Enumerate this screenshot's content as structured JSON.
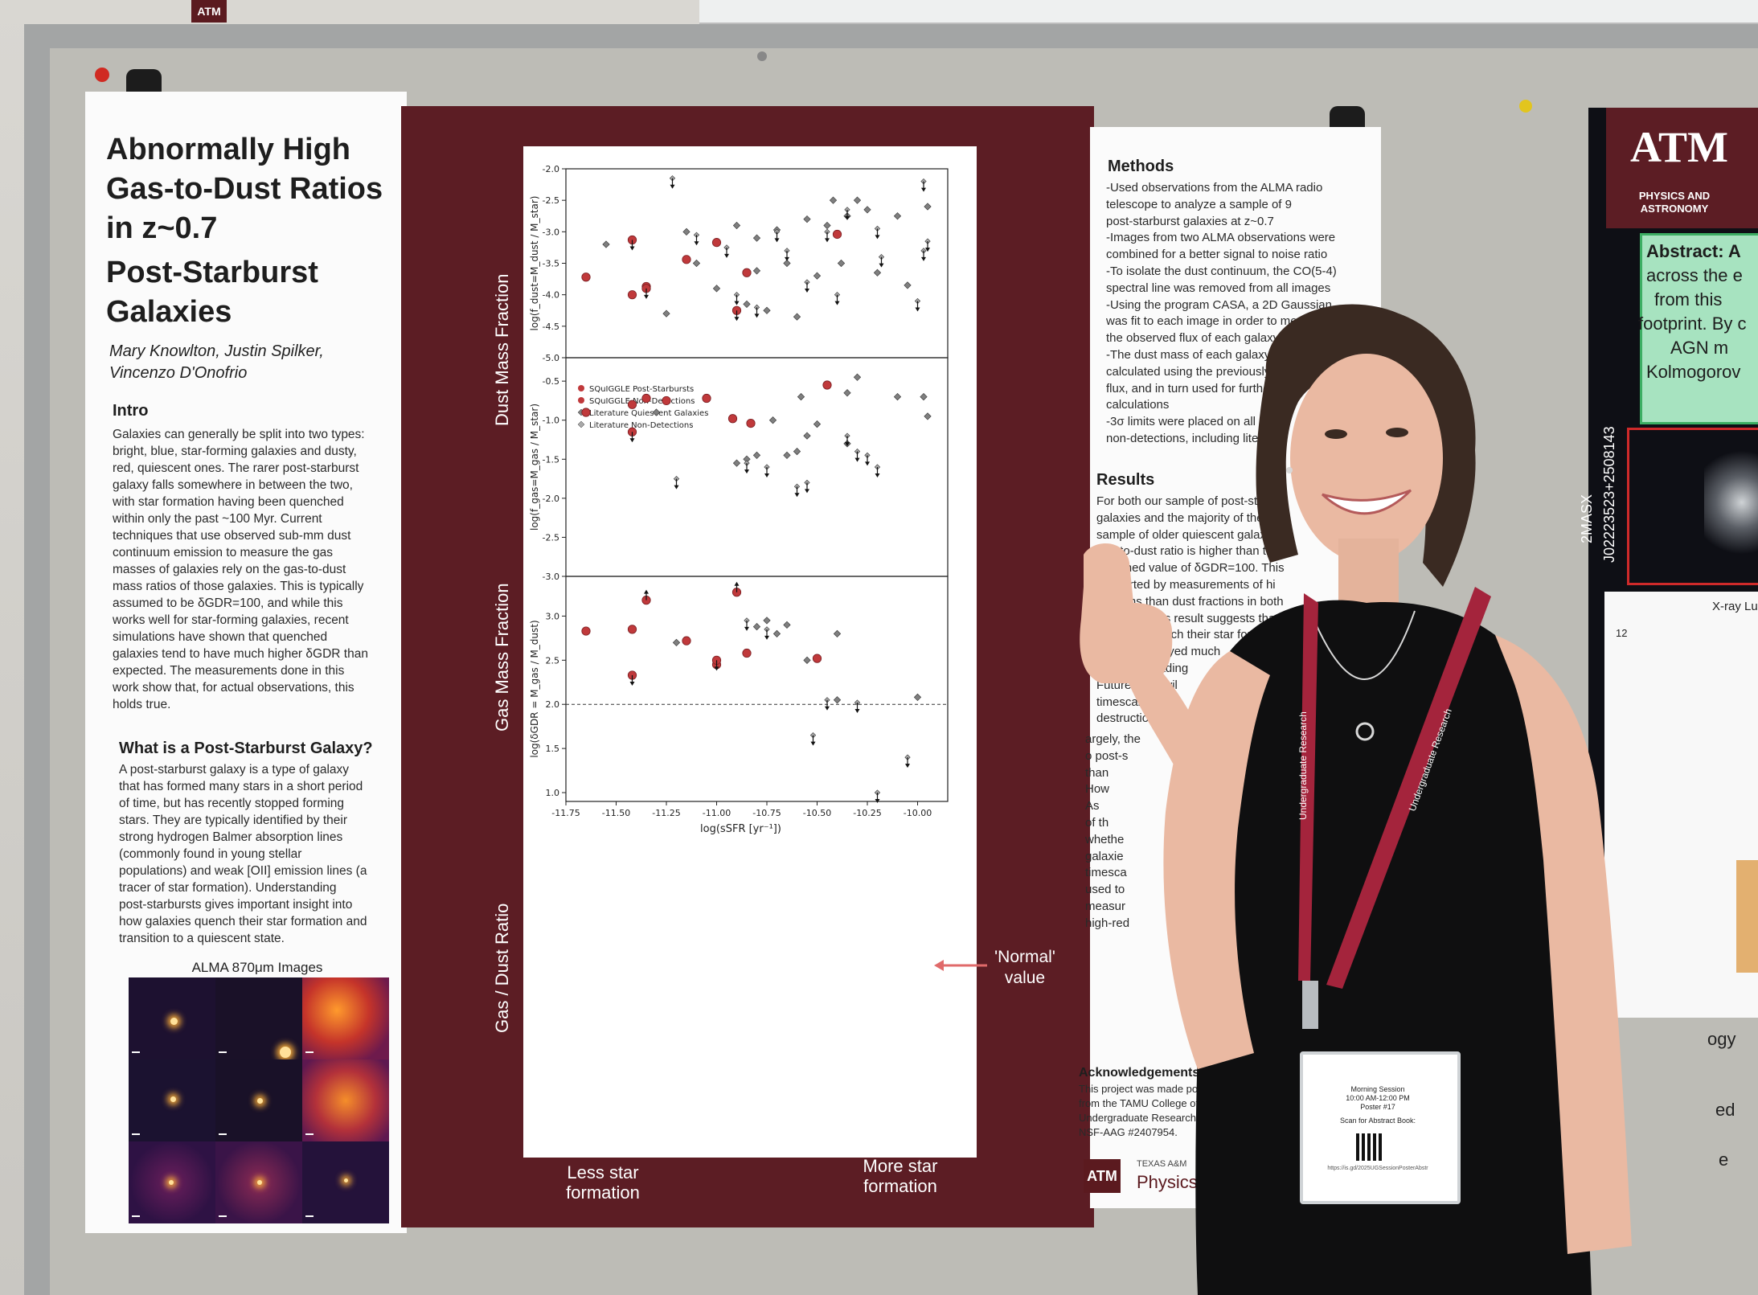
{
  "poster": {
    "title_lines": [
      "Abnormally High",
      "Gas-to-Dust Ratios",
      "in z~0.7",
      "Post-Starburst",
      "Galaxies"
    ],
    "authors_lines": [
      "Mary Knowlton, Justin Spilker,",
      "Vincenzo D'Onofrio"
    ],
    "intro": {
      "heading": "Intro",
      "lines": [
        "Galaxies can generally be split into two types:",
        "bright, blue, star-forming galaxies and dusty,",
        "red, quiescent ones. The rarer post-starburst",
        "galaxy falls somewhere in between the two,",
        "with star formation having been quenched",
        "within only the past ~100 Myr. Current",
        "techniques that use observed sub-mm dust",
        "continuum emission to measure the gas",
        "masses of galaxies rely on the gas-to-dust",
        "mass ratios of those galaxies. This is typically",
        "assumed to be δGDR=100, and while this",
        "works well for star-forming galaxies, recent",
        "simulations have shown that quenched",
        "galaxies tend to have much higher δGDR than",
        "expected. The measurements done in this",
        "work show that, for actual observations, this",
        "holds true."
      ]
    },
    "what_is": {
      "heading": "What is a Post-Starburst Galaxy?",
      "lines": [
        "A post-starburst galaxy is a type of galaxy",
        "that has formed many stars in a short period",
        "of time, but has recently stopped forming",
        "stars. They are typically identified by their",
        "strong hydrogen Balmer absorption lines",
        "(commonly found in young stellar",
        "populations) and weak [OII] emission lines (a",
        "tracer of star formation). Understanding",
        "post-starbursts gives important insight into",
        "how galaxies quench their star formation and",
        "transition to a quiescent state."
      ]
    },
    "alma_caption": "ALMA 870μm Images",
    "methods": {
      "heading": "Methods",
      "lines": [
        "-Used observations from the ALMA radio",
        "telescope to analyze a sample of 9",
        "post-starburst galaxies at z~0.7",
        "-Images from two ALMA observations were",
        "combined for a better signal to noise ratio",
        "-To isolate the dust continuum, the CO(5-4)",
        "spectral line was removed from all images",
        "-Using the program CASA, a 2D Gaussian",
        "was fit to each image in order to measu",
        "the observed flux of each galaxy",
        "-The dust mass of each galaxy was",
        "calculated using the previously mea",
        "flux, and in turn used for further",
        "calculations",
        "-3σ limits were placed on all",
        "non-detections, including literatu"
      ]
    },
    "results": {
      "heading": "Results",
      "lines": [
        "For both our sample of post-starb",
        "galaxies and the majority of the lit",
        "sample of older quiescent galaxies,",
        "gas-to-dust ratio is higher than the",
        "assumed value of δGDR=100. This",
        "supported by measurements of hi",
        "fractions than dust fractions in both",
        "samples. This result suggests that as",
        "galaxies quench their star for",
        "dust is destroyed much",
        "their gas, leading",
        "Future work wil",
        "timescale that",
        "destruction o"
      ],
      "partial_lines": [
        "argely, the",
        "o  post-s",
        "than",
        "How",
        "",
        "",
        "As",
        "of th",
        "whethe",
        "galaxie",
        "timesca",
        "used to",
        "measur",
        "high-red"
      ]
    },
    "acknowledgements": {
      "heading": "Acknowledgements",
      "lines": [
        "This project was made possib",
        "from the TAMU College of A",
        "Undergraduate Research P",
        "NSF-AAG #2407954."
      ]
    },
    "footer": {
      "logo": "ATM",
      "small_text": "TEXAS A&M",
      "dept": "Physics"
    },
    "panel_labels": {
      "dust_mass_fraction": "Dust Mass Fraction",
      "gas_mass_fraction": "Gas Mass Fraction",
      "gas_dust_ratio": "Gas / Dust Ratio",
      "less_star_formation": [
        "Less star",
        "formation"
      ],
      "more_star_formation": [
        "More star",
        "formation"
      ],
      "normal_value": [
        "'Normal'",
        "value"
      ]
    }
  },
  "chart_data": [
    {
      "type": "scatter",
      "title": "",
      "ylabel": "log(f_dust=M_dust / M_star)",
      "xlabel": "",
      "xlim": [
        -11.75,
        -9.85
      ],
      "ylim": [
        -5.0,
        -2.0
      ],
      "yticks": [
        "-2.0",
        "-2.5",
        "-3.0",
        "-3.5",
        "-4.0",
        "-4.5",
        "-5.0"
      ],
      "legend": [
        "SQuIGGLE Post-Starbursts",
        "SQuIGGLE Non-Detections",
        "Literature Quiescent Galaxies",
        "Literature Non-Detections"
      ],
      "series": [
        {
          "name": "SQuIGGLE Post-Starbursts",
          "points": [
            [
              -11.65,
              -3.72
            ],
            [
              -11.42,
              -4.0
            ],
            [
              -11.35,
              -3.87
            ],
            [
              -11.15,
              -3.44
            ],
            [
              -11.0,
              -3.17
            ],
            [
              -10.85,
              -3.65
            ],
            [
              -10.4,
              -3.04
            ]
          ]
        },
        {
          "name": "SQuIGGLE Non-Detections",
          "points": [
            [
              -11.42,
              -3.13
            ],
            [
              -11.35,
              -3.9
            ],
            [
              -10.9,
              -4.25
            ]
          ]
        },
        {
          "name": "Literature Quiescent Galaxies",
          "points": [
            [
              -11.55,
              -3.2
            ],
            [
              -11.25,
              -4.3
            ],
            [
              -11.15,
              -3.0
            ],
            [
              -11.1,
              -3.5
            ],
            [
              -11.0,
              -3.9
            ],
            [
              -10.9,
              -2.9
            ],
            [
              -10.85,
              -4.15
            ],
            [
              -10.8,
              -3.1
            ],
            [
              -10.8,
              -3.62
            ],
            [
              -10.75,
              -4.25
            ],
            [
              -10.7,
              -2.97
            ],
            [
              -10.65,
              -3.5
            ],
            [
              -10.6,
              -4.35
            ],
            [
              -10.55,
              -2.8
            ],
            [
              -10.5,
              -3.7
            ],
            [
              -10.45,
              -2.9
            ],
            [
              -10.42,
              -2.5
            ],
            [
              -10.38,
              -3.5
            ],
            [
              -10.35,
              -2.75
            ],
            [
              -10.3,
              -2.5
            ],
            [
              -10.25,
              -2.65
            ],
            [
              -10.2,
              -3.65
            ],
            [
              -10.1,
              -2.75
            ],
            [
              -10.05,
              -3.85
            ],
            [
              -9.95,
              -2.6
            ]
          ]
        },
        {
          "name": "Literature Non-Detections",
          "points": [
            [
              -11.22,
              -2.15
            ],
            [
              -11.1,
              -3.05
            ],
            [
              -10.95,
              -3.25
            ],
            [
              -10.9,
              -4.0
            ],
            [
              -10.8,
              -4.2
            ],
            [
              -10.7,
              -3.0
            ],
            [
              -10.65,
              -3.3
            ],
            [
              -10.55,
              -3.8
            ],
            [
              -10.45,
              -3.0
            ],
            [
              -10.4,
              -4.0
            ],
            [
              -10.35,
              -2.65
            ],
            [
              -10.2,
              -2.95
            ],
            [
              -10.18,
              -3.4
            ],
            [
              -10.0,
              -4.1
            ],
            [
              -9.97,
              -2.2
            ],
            [
              -9.97,
              -3.3
            ],
            [
              -9.95,
              -3.15
            ]
          ]
        }
      ]
    },
    {
      "type": "scatter",
      "title": "",
      "ylabel": "log(f_gas=M_gas / M_star)",
      "xlabel": "",
      "xlim": [
        -11.75,
        -9.85
      ],
      "ylim": [
        -3.0,
        -0.2
      ],
      "yticks": [
        "-0.5",
        "-1.0",
        "-1.5",
        "-2.0",
        "-2.5",
        "-3.0"
      ],
      "series": [
        {
          "name": "SQuIGGLE Post-Starbursts",
          "points": [
            [
              -11.65,
              -0.9
            ],
            [
              -11.42,
              -0.8
            ],
            [
              -11.35,
              -0.72
            ],
            [
              -11.25,
              -0.75
            ],
            [
              -11.05,
              -0.72
            ],
            [
              -10.92,
              -0.98
            ],
            [
              -10.83,
              -1.04
            ],
            [
              -10.45,
              -0.55
            ]
          ]
        },
        {
          "name": "SQuIGGLE Non-Detections",
          "points": [
            [
              -11.42,
              -1.15
            ]
          ]
        },
        {
          "name": "Literature Quiescent Galaxies",
          "points": [
            [
              -11.3,
              -0.9
            ],
            [
              -10.9,
              -1.55
            ],
            [
              -10.85,
              -1.5
            ],
            [
              -10.8,
              -1.45
            ],
            [
              -10.72,
              -1.0
            ],
            [
              -10.65,
              -1.45
            ],
            [
              -10.6,
              -1.4
            ],
            [
              -10.58,
              -0.7
            ],
            [
              -10.55,
              -1.2
            ],
            [
              -10.5,
              -1.05
            ],
            [
              -10.35,
              -0.65
            ],
            [
              -10.35,
              -1.3
            ],
            [
              -10.3,
              -0.45
            ],
            [
              -10.1,
              -0.7
            ],
            [
              -9.97,
              -0.7
            ],
            [
              -9.95,
              -0.95
            ]
          ]
        },
        {
          "name": "Literature Non-Detections",
          "points": [
            [
              -11.2,
              -1.75
            ],
            [
              -10.85,
              -1.55
            ],
            [
              -10.75,
              -1.6
            ],
            [
              -10.6,
              -1.85
            ],
            [
              -10.55,
              -1.8
            ],
            [
              -10.35,
              -1.2
            ],
            [
              -10.3,
              -1.4
            ],
            [
              -10.25,
              -1.45
            ],
            [
              -10.2,
              -1.6
            ]
          ]
        }
      ]
    },
    {
      "type": "scatter",
      "title": "",
      "ylabel": "log(δGDR = M_gas / M_dust)",
      "xlabel": "log(sSFR [yr⁻¹])",
      "xlim": [
        -11.75,
        -9.85
      ],
      "ylim": [
        0.9,
        3.45
      ],
      "yticks": [
        "3.0",
        "2.5",
        "2.0",
        "1.5",
        "1.0"
      ],
      "xticks": [
        "-11.75",
        "-11.50",
        "-11.25",
        "-11.00",
        "-10.75",
        "-10.50",
        "-10.25",
        "-10.00"
      ],
      "reference_line": 2.0,
      "series": [
        {
          "name": "SQuIGGLE Post-Starbursts",
          "points": [
            [
              -11.65,
              2.83
            ],
            [
              -11.42,
              2.85
            ],
            [
              -11.15,
              2.72
            ],
            [
              -11.0,
              2.45
            ],
            [
              -10.85,
              2.58
            ],
            [
              -10.5,
              2.52
            ]
          ]
        },
        {
          "name": "SQuIGGLE Non-Detections",
          "points": [
            [
              -11.42,
              2.33
            ],
            [
              -11.35,
              3.18
            ],
            [
              -11.0,
              2.5
            ],
            [
              -10.9,
              3.27
            ]
          ]
        },
        {
          "name": "Literature Quiescent Galaxies",
          "points": [
            [
              -11.2,
              2.7
            ],
            [
              -10.8,
              2.88
            ],
            [
              -10.75,
              2.95
            ],
            [
              -10.7,
              2.8
            ],
            [
              -10.65,
              2.9
            ],
            [
              -10.55,
              2.5
            ],
            [
              -10.4,
              2.8
            ],
            [
              -10.4,
              2.05
            ],
            [
              -10.0,
              2.08
            ]
          ]
        },
        {
          "name": "Literature Non-Detections",
          "points": [
            [
              -10.85,
              2.95
            ],
            [
              -10.75,
              2.85
            ],
            [
              -10.52,
              1.65
            ],
            [
              -10.45,
              2.05
            ],
            [
              -10.3,
              2.02
            ],
            [
              -10.2,
              1.0
            ],
            [
              -10.05,
              1.4
            ]
          ]
        }
      ]
    }
  ],
  "right_poster": {
    "logo": "ATM",
    "dept_lines": [
      "PHYSICS AND",
      "ASTRONOMY"
    ],
    "abstract_lines": [
      "Abstract: A",
      "across the e",
      "from this",
      "footprint. By c",
      "AGN m",
      "Kolmogorov"
    ],
    "rotated_lines": [
      "2MASX",
      "J02223523+2508143"
    ],
    "xray_label": "X-ray Lun",
    "tick_12": "12",
    "fragments": [
      "ogy",
      "ed",
      "e"
    ]
  },
  "badge": {
    "lines": [
      "Morning Session",
      "10:00 AM-12:00 PM",
      "Poster #17",
      "Scan for Abstract Book:"
    ],
    "url": "https://is.gd/2025UGSessionPosterAbstr"
  },
  "lanyard": {
    "text_a": "Undergraduate Research",
    "text_b": "Undergraduate Research"
  },
  "colors": {
    "maroon": "#5c1d24",
    "red_marker": "#c0393b",
    "lit_marker": "#7f7f7f"
  }
}
